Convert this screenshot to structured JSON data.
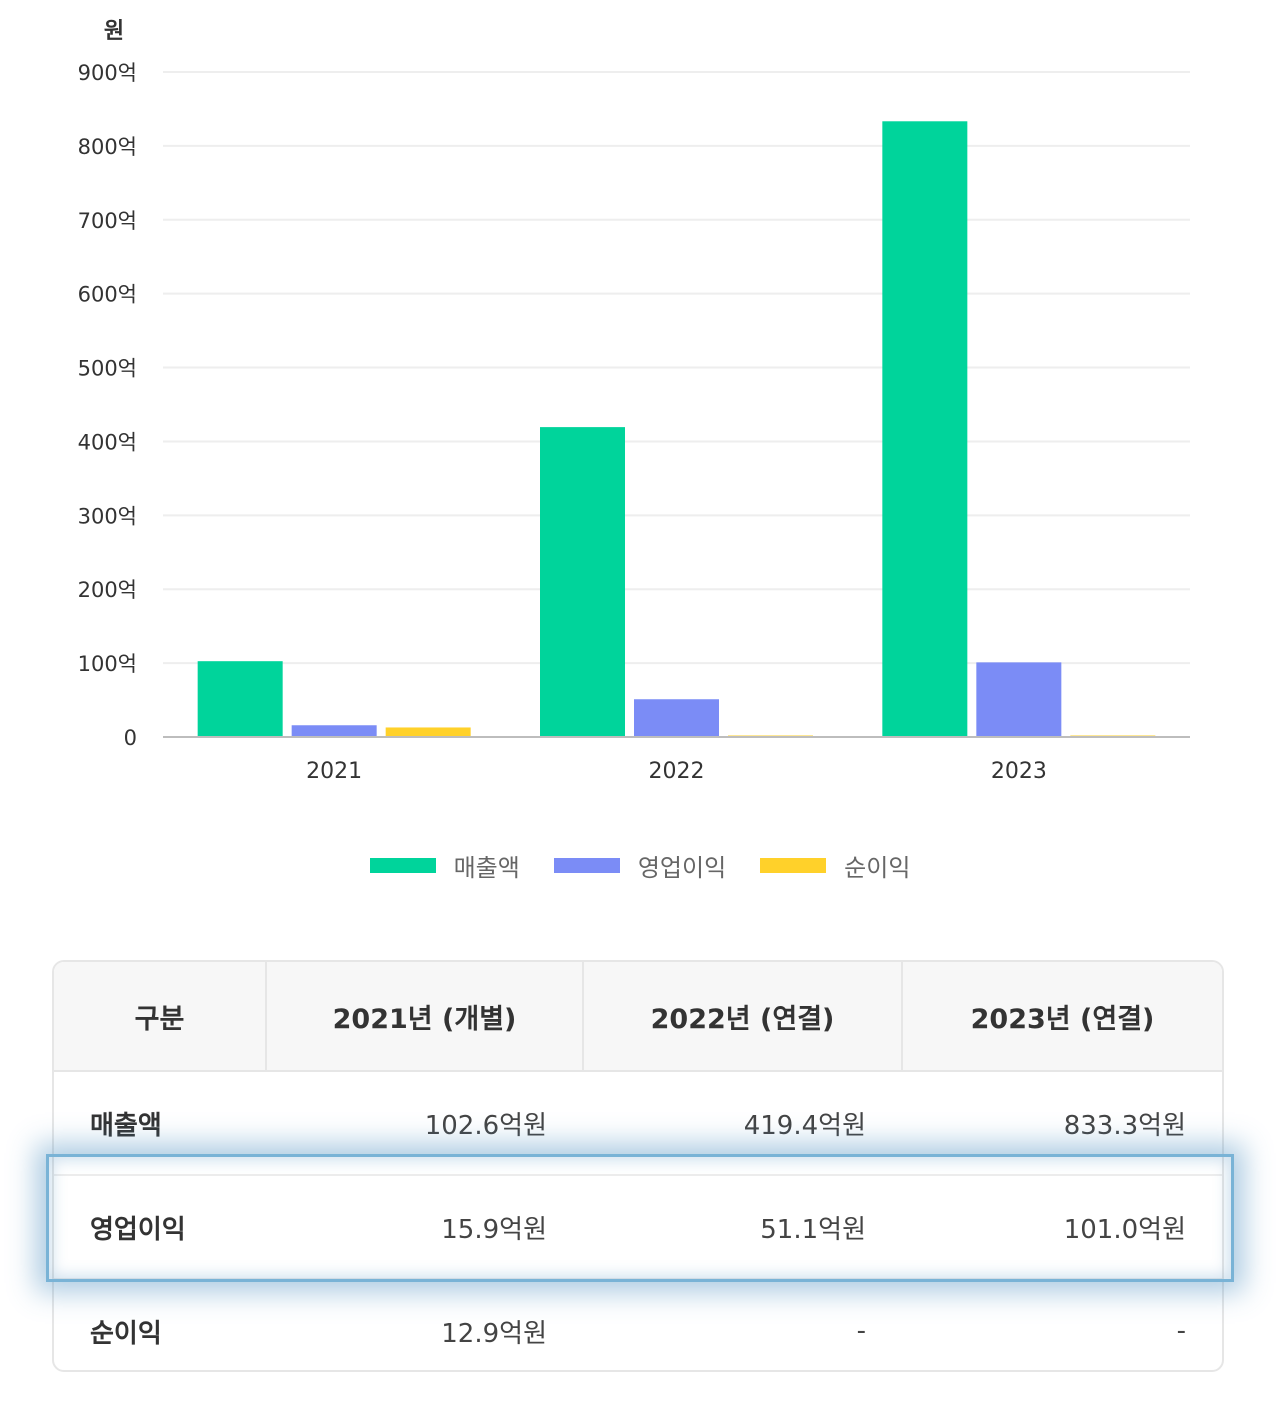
{
  "colors": {
    "revenue": "#00d49b",
    "operating_profit": "#7b8cf6",
    "net_income": "#ffd12a",
    "grid": "#eeeeee"
  },
  "chart_data": {
    "type": "bar",
    "ylabel": "원",
    "categories": [
      "2021",
      "2022",
      "2023"
    ],
    "ylim": [
      0,
      900
    ],
    "y_ticks": [
      "0",
      "100억",
      "200억",
      "300억",
      "400억",
      "500억",
      "600억",
      "700억",
      "800억",
      "900억"
    ],
    "grid": true,
    "legend_position": "bottom",
    "series": [
      {
        "name": "매출액",
        "values": [
          102.6,
          419.4,
          833.3
        ]
      },
      {
        "name": "영업이익",
        "values": [
          15.9,
          51.1,
          101.0
        ]
      },
      {
        "name": "순이익",
        "values": [
          12.9,
          0,
          0
        ]
      }
    ]
  },
  "table": {
    "headers": [
      "구분",
      "2021년 (개별)",
      "2022년 (연결)",
      "2023년 (연결)"
    ],
    "rows": [
      {
        "label": "매출액",
        "cells": [
          "102.6억원",
          "419.4억원",
          "833.3억원"
        ]
      },
      {
        "label": "영업이익",
        "cells": [
          "15.9억원",
          "51.1억원",
          "101.0억원"
        ]
      },
      {
        "label": "순이익",
        "cells": [
          "12.9억원",
          "-",
          "-"
        ]
      }
    ]
  }
}
